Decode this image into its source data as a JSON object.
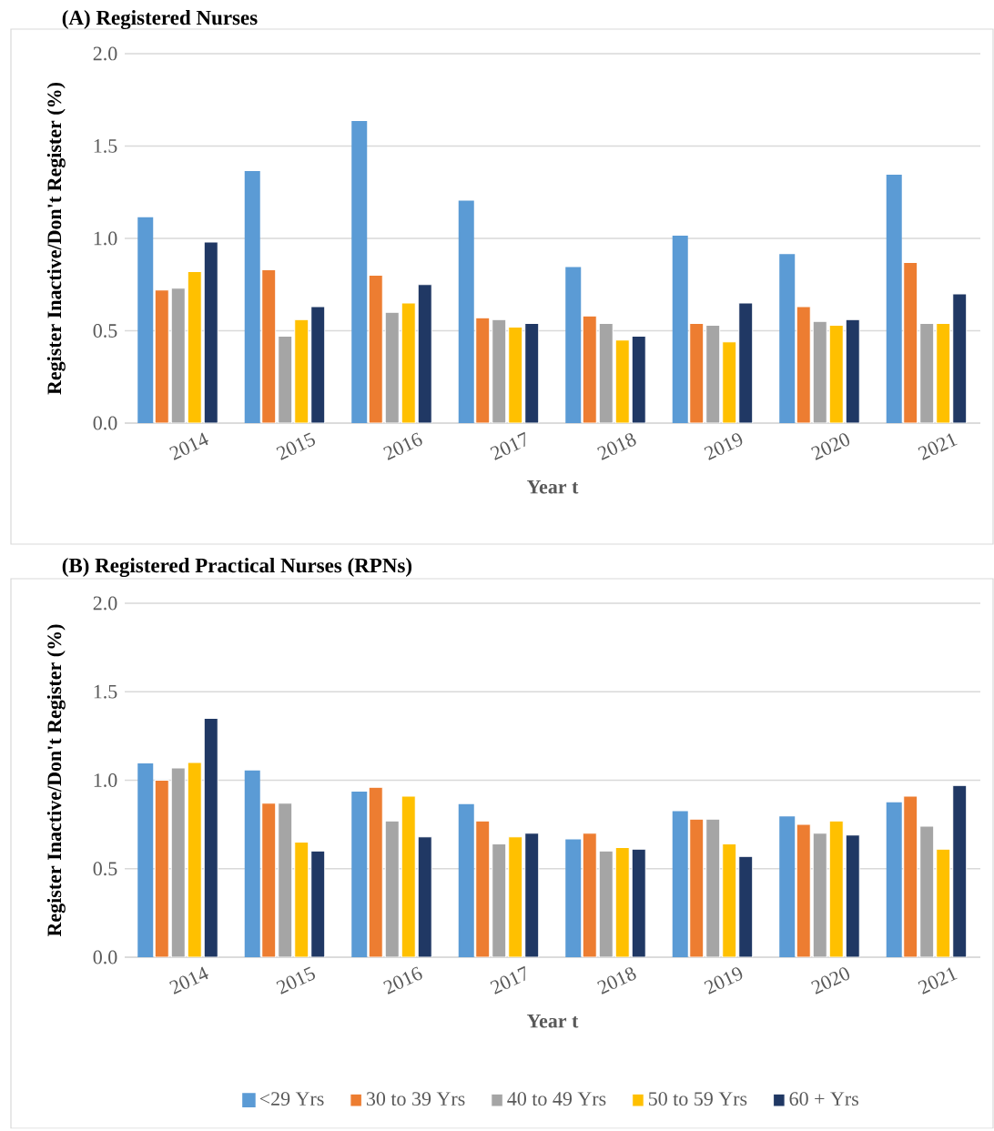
{
  "chart_data": [
    {
      "type": "bar",
      "title": "(A)  Registered Nurses",
      "xlabel": "Year t",
      "ylabel": "Register Inactive/Don't Register (%)",
      "categories": [
        "2014",
        "2015",
        "2016",
        "2017",
        "2018",
        "2019",
        "2020",
        "2021"
      ],
      "ylim": [
        0,
        2.0
      ],
      "yticks": [
        {
          "value": 0,
          "label": "0.0"
        },
        {
          "value": 0.5,
          "label": "0.5"
        },
        {
          "value": 1,
          "label": "1.0"
        },
        {
          "value": 1.5,
          "label": "1.5"
        },
        {
          "value": 2,
          "label": "2.0"
        }
      ],
      "grid": "y",
      "series": [
        {
          "color": "#5b9bd5",
          "values": [
            1.11,
            1.36,
            1.63,
            1.2,
            0.84,
            1.01,
            0.91,
            1.34
          ]
        },
        {
          "color": "#ed7d31",
          "values": [
            0.72,
            0.83,
            0.8,
            0.57,
            0.58,
            0.54,
            0.63,
            0.87
          ]
        },
        {
          "color": "#a5a5a5",
          "values": [
            0.73,
            0.47,
            0.6,
            0.56,
            0.54,
            0.53,
            0.55,
            0.54
          ]
        },
        {
          "color": "#ffc000",
          "values": [
            0.82,
            0.56,
            0.65,
            0.52,
            0.45,
            0.44,
            0.53,
            0.54
          ]
        },
        {
          "color": "#203864",
          "values": [
            0.98,
            0.63,
            0.75,
            0.54,
            0.47,
            0.65,
            0.56,
            0.7
          ]
        }
      ]
    },
    {
      "type": "bar",
      "title": "(B)  Registered Practical Nurses (RPNs)",
      "xlabel": "Year t",
      "ylabel": "Register Inactive/Don't Register (%)",
      "categories": [
        "2014",
        "2015",
        "2016",
        "2017",
        "2018",
        "2019",
        "2020",
        "2021"
      ],
      "ylim": [
        0,
        2.0
      ],
      "yticks": [
        {
          "value": 0,
          "label": "0.0"
        },
        {
          "value": 0.5,
          "label": "0.5"
        },
        {
          "value": 1,
          "label": "1.0"
        },
        {
          "value": 1.5,
          "label": "1.5"
        },
        {
          "value": 2,
          "label": "2.0"
        }
      ],
      "grid": "y",
      "legend": "bottom",
      "series": [
        {
          "name": "<29 Yrs",
          "color": "#5b9bd5",
          "values": [
            1.09,
            1.05,
            0.93,
            0.86,
            0.66,
            0.82,
            0.79,
            0.87
          ]
        },
        {
          "name": "30 to 39 Yrs",
          "color": "#ed7d31",
          "values": [
            1.0,
            0.87,
            0.96,
            0.77,
            0.7,
            0.78,
            0.75,
            0.91
          ]
        },
        {
          "name": "40 to 49 Yrs",
          "color": "#a5a5a5",
          "values": [
            1.07,
            0.87,
            0.77,
            0.64,
            0.6,
            0.78,
            0.7,
            0.74
          ]
        },
        {
          "name": "50 to 59 Yrs",
          "color": "#ffc000",
          "values": [
            1.1,
            0.65,
            0.91,
            0.68,
            0.62,
            0.64,
            0.77,
            0.61
          ]
        },
        {
          "name": "60 + Yrs",
          "color": "#203864",
          "values": [
            1.35,
            0.6,
            0.68,
            0.7,
            0.61,
            0.57,
            0.69,
            0.97
          ]
        }
      ]
    }
  ]
}
